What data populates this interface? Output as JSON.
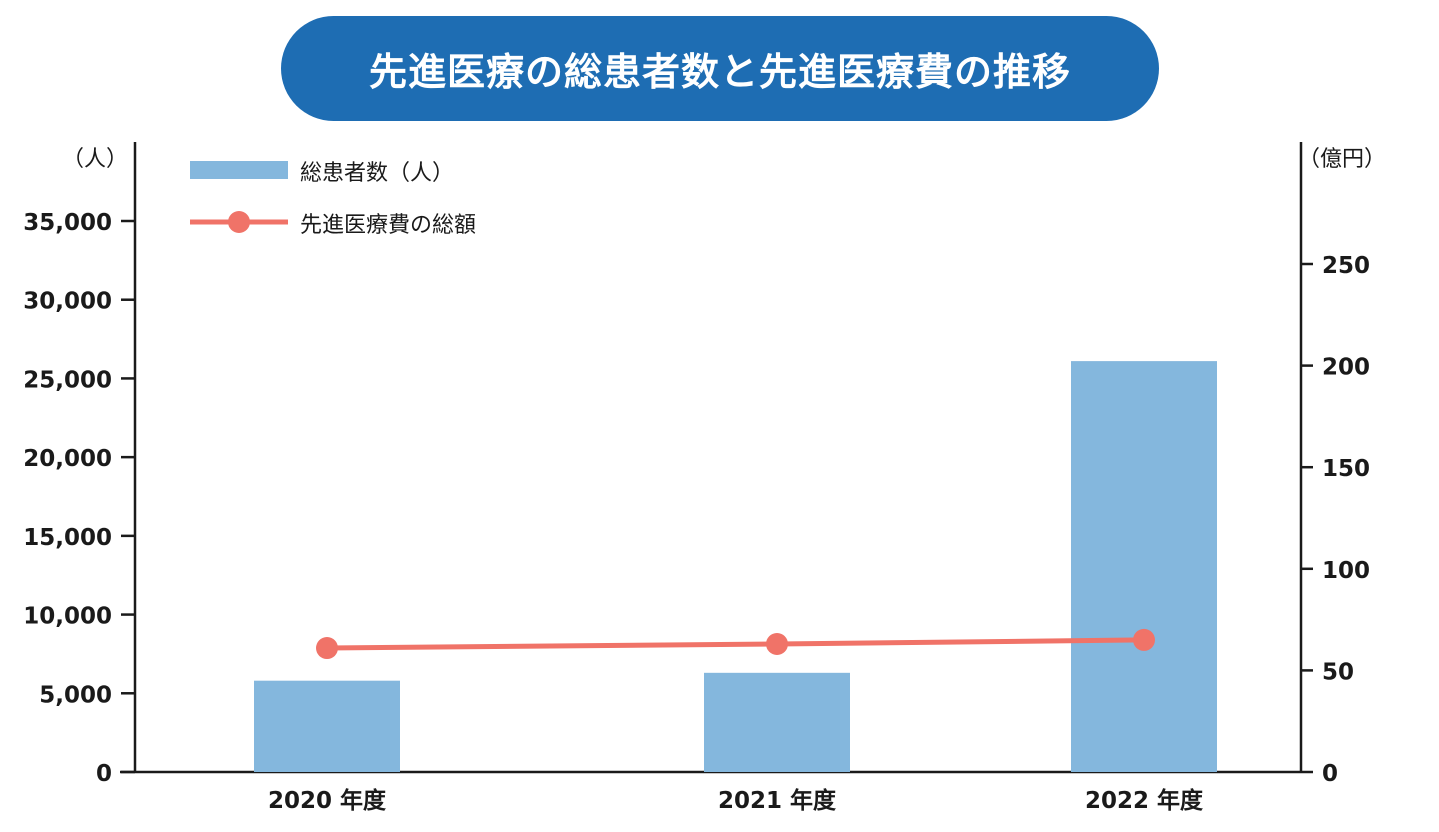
{
  "chart_data": {
    "type": "bar",
    "title": "先進医療の総患者数と先進医療費の推移",
    "categories": [
      "2020 年度",
      "2021 年度",
      "2022 年度"
    ],
    "series": [
      {
        "name": "総患者数（人）",
        "type": "bar",
        "axis": "left",
        "values": [
          5800,
          6300,
          26100
        ]
      },
      {
        "name": "先進医療費の総額",
        "type": "line",
        "axis": "right",
        "values": [
          61,
          63,
          65
        ]
      }
    ],
    "yleft": {
      "unit": "（人）",
      "ylim": [
        0,
        35000
      ],
      "ticks": [
        0,
        5000,
        10000,
        15000,
        20000,
        25000,
        30000,
        35000
      ],
      "tick_labels": [
        "0",
        "5,000",
        "10,000",
        "15,000",
        "20,000",
        "25,000",
        "30,000",
        "35,000"
      ]
    },
    "yright": {
      "unit": "（億円）",
      "ticks": [
        0,
        50,
        100,
        150,
        200,
        250
      ],
      "tick_labels": [
        "0",
        "50",
        "100",
        "150",
        "200",
        "250"
      ]
    },
    "legend_position": "top-left",
    "grid": false
  },
  "colors": {
    "title_bg": "#1e6db3",
    "bar": "#84b7dd",
    "line": "#f07368",
    "axis": "#1a1a1a"
  }
}
